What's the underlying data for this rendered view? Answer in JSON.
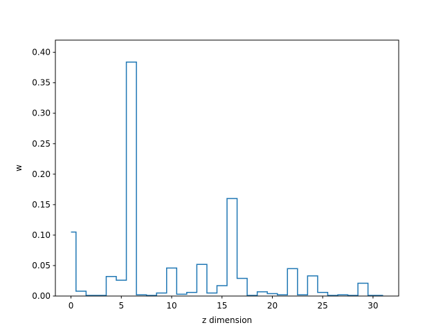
{
  "chart_data": {
    "type": "step",
    "xlabel": "z dimension",
    "ylabel": "w",
    "xlim": [
      -1.55,
      32.55
    ],
    "ylim": [
      0,
      0.42
    ],
    "x_ticks": [
      0,
      5,
      10,
      15,
      20,
      25,
      30
    ],
    "y_ticks": [
      0.0,
      0.05,
      0.1,
      0.15,
      0.2,
      0.25,
      0.3,
      0.35,
      0.4
    ],
    "grid": false,
    "series": [
      {
        "color": "#1f77b4",
        "x": [
          0,
          1,
          2,
          3,
          4,
          5,
          6,
          7,
          8,
          9,
          10,
          11,
          12,
          13,
          14,
          15,
          16,
          17,
          18,
          19,
          20,
          21,
          22,
          23,
          24,
          25,
          26,
          27,
          28,
          29,
          30,
          31
        ],
        "values": [
          0.105,
          0.008,
          0.001,
          0.001,
          0.032,
          0.026,
          0.384,
          0.002,
          0.001,
          0.005,
          0.046,
          0.003,
          0.006,
          0.052,
          0.005,
          0.017,
          0.16,
          0.029,
          0.001,
          0.007,
          0.004,
          0.002,
          0.045,
          0.002,
          0.033,
          0.006,
          0.001,
          0.002,
          0.001,
          0.021,
          0.001,
          0.001
        ]
      }
    ]
  }
}
